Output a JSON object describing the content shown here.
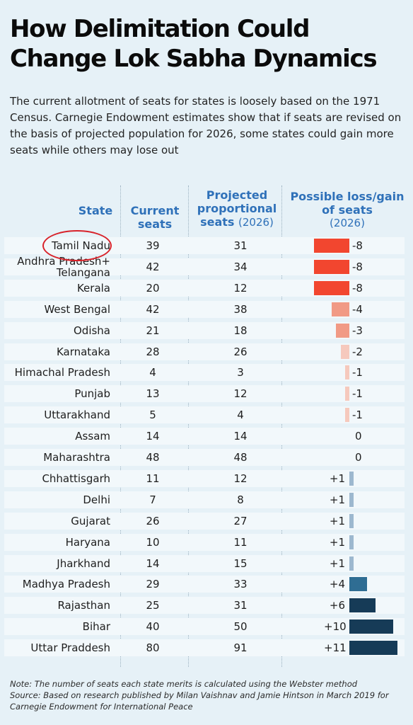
{
  "title_line1": "How Delimitation Could",
  "title_line2": "Change Lok Sabha Dynamics",
  "subtitle": "The current allotment of seats for states is loosely based on the 1971 Census. Carnegie Endowment estimates show that if seats are revised on the basis of projected population for 2026, some states could gain more seats while others may lose out",
  "headers": {
    "state": "State",
    "current_1": "Current",
    "current_2": "seats",
    "projected_1": "Projected",
    "projected_2": "proportional",
    "projected_3": "seats",
    "projected_year": "(2026)",
    "loss_1": "Possible loss/gain",
    "loss_2": "of seats",
    "loss_year": "(2026)"
  },
  "notes": {
    "note": "Note: The number of seats each state merits is calculated using the Webster method",
    "source": "Source: Based on research published by Milan Vaishnav and Jamie Hintson in March 2019 for Carnegie Endowment for International Peace"
  },
  "colors": {
    "loss_dark": "#f2462f",
    "loss_mid": "#f19a85",
    "loss_light": "#f6c9bd",
    "gain_light": "#9db8cf",
    "gain_mid": "#2f6d93",
    "gain_dark": "#163b57",
    "header_blue": "#2f71b9",
    "highlight_circle": "#d8222a"
  },
  "chart_data": {
    "type": "table",
    "columns": [
      "State",
      "Current seats",
      "Projected proportional seats (2026)",
      "Possible loss/gain of seats (2026)"
    ],
    "rows": [
      {
        "state": "Tamil Nadu",
        "current": 39,
        "projected": 31,
        "change": -8,
        "change_label": "-8"
      },
      {
        "state": "Andhra Pradesh+ Telangana",
        "current": 42,
        "projected": 34,
        "change": -8,
        "change_label": "-8"
      },
      {
        "state": "Kerala",
        "current": 20,
        "projected": 12,
        "change": -8,
        "change_label": "-8"
      },
      {
        "state": "West Bengal",
        "current": 42,
        "projected": 38,
        "change": -4,
        "change_label": "-4"
      },
      {
        "state": "Odisha",
        "current": 21,
        "projected": 18,
        "change": -3,
        "change_label": "-3"
      },
      {
        "state": "Karnataka",
        "current": 28,
        "projected": 26,
        "change": -2,
        "change_label": "-2"
      },
      {
        "state": "Himachal Pradesh",
        "current": 4,
        "projected": 3,
        "change": -1,
        "change_label": "-1"
      },
      {
        "state": "Punjab",
        "current": 13,
        "projected": 12,
        "change": -1,
        "change_label": "-1"
      },
      {
        "state": "Uttarakhand",
        "current": 5,
        "projected": 4,
        "change": -1,
        "change_label": "-1"
      },
      {
        "state": "Assam",
        "current": 14,
        "projected": 14,
        "change": 0,
        "change_label": "0"
      },
      {
        "state": "Maharashtra",
        "current": 48,
        "projected": 48,
        "change": 0,
        "change_label": "0"
      },
      {
        "state": "Chhattisgarh",
        "current": 11,
        "projected": 12,
        "change": 1,
        "change_label": "+1"
      },
      {
        "state": "Delhi",
        "current": 7,
        "projected": 8,
        "change": 1,
        "change_label": "+1"
      },
      {
        "state": "Gujarat",
        "current": 26,
        "projected": 27,
        "change": 1,
        "change_label": "+1"
      },
      {
        "state": "Haryana",
        "current": 10,
        "projected": 11,
        "change": 1,
        "change_label": "+1"
      },
      {
        "state": "Jharkhand",
        "current": 14,
        "projected": 15,
        "change": 1,
        "change_label": "+1"
      },
      {
        "state": "Madhya Pradesh",
        "current": 29,
        "projected": 33,
        "change": 4,
        "change_label": "+4"
      },
      {
        "state": "Rajasthan",
        "current": 25,
        "projected": 31,
        "change": 6,
        "change_label": "+6"
      },
      {
        "state": "Bihar",
        "current": 40,
        "projected": 50,
        "change": 10,
        "change_label": "+10"
      },
      {
        "state": "Uttar Praddesh",
        "current": 80,
        "projected": 91,
        "change": 11,
        "change_label": "+11"
      }
    ],
    "highlighted_state": "Tamil Nadu"
  }
}
